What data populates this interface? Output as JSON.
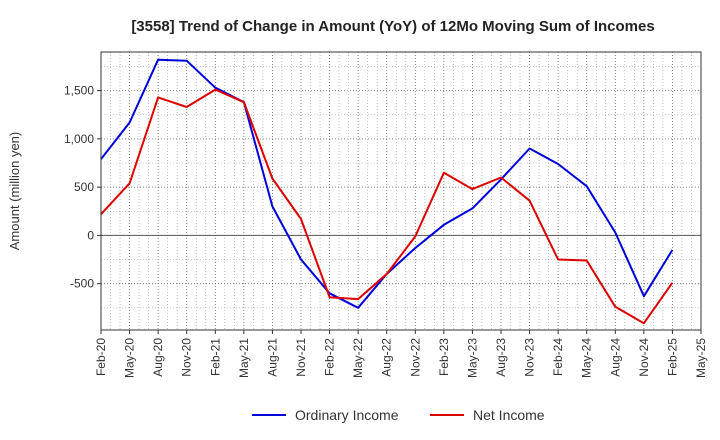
{
  "chart_data": {
    "type": "line",
    "title": "[3558]  Trend of Change in Amount (YoY) of 12Mo Moving Sum of Incomes",
    "xlabel": "",
    "ylabel": "Amount (million yen)",
    "ylim": [
      -980,
      1900
    ],
    "yticks": [
      -500,
      0,
      500,
      1000,
      1500
    ],
    "ytick_labels": [
      "-500",
      "0",
      "500",
      "1,000",
      "1,500"
    ],
    "x": [
      "Feb-20",
      "May-20",
      "Aug-20",
      "Nov-20",
      "Feb-21",
      "May-21",
      "Aug-21",
      "Nov-21",
      "Feb-22",
      "May-22",
      "Aug-22",
      "Nov-22",
      "Feb-23",
      "May-23",
      "Aug-23",
      "Nov-23",
      "Feb-24",
      "May-24",
      "Aug-24",
      "Nov-24",
      "Feb-25",
      "May-25"
    ],
    "series": [
      {
        "name": "Ordinary Income",
        "color": "#0000dd",
        "values": [
          790,
          1170,
          1820,
          1810,
          1530,
          1380,
          300,
          -250,
          -600,
          -750,
          -400,
          -130,
          110,
          280,
          580,
          900,
          740,
          510,
          30,
          -630,
          -150,
          null
        ]
      },
      {
        "name": "Net Income",
        "color": "#dd0000",
        "values": [
          220,
          540,
          1430,
          1330,
          1510,
          1380,
          590,
          170,
          -640,
          -660,
          -400,
          -10,
          650,
          480,
          600,
          360,
          -250,
          -260,
          -740,
          -910,
          -490,
          null
        ]
      }
    ],
    "grid": true,
    "legend": "bottom"
  }
}
